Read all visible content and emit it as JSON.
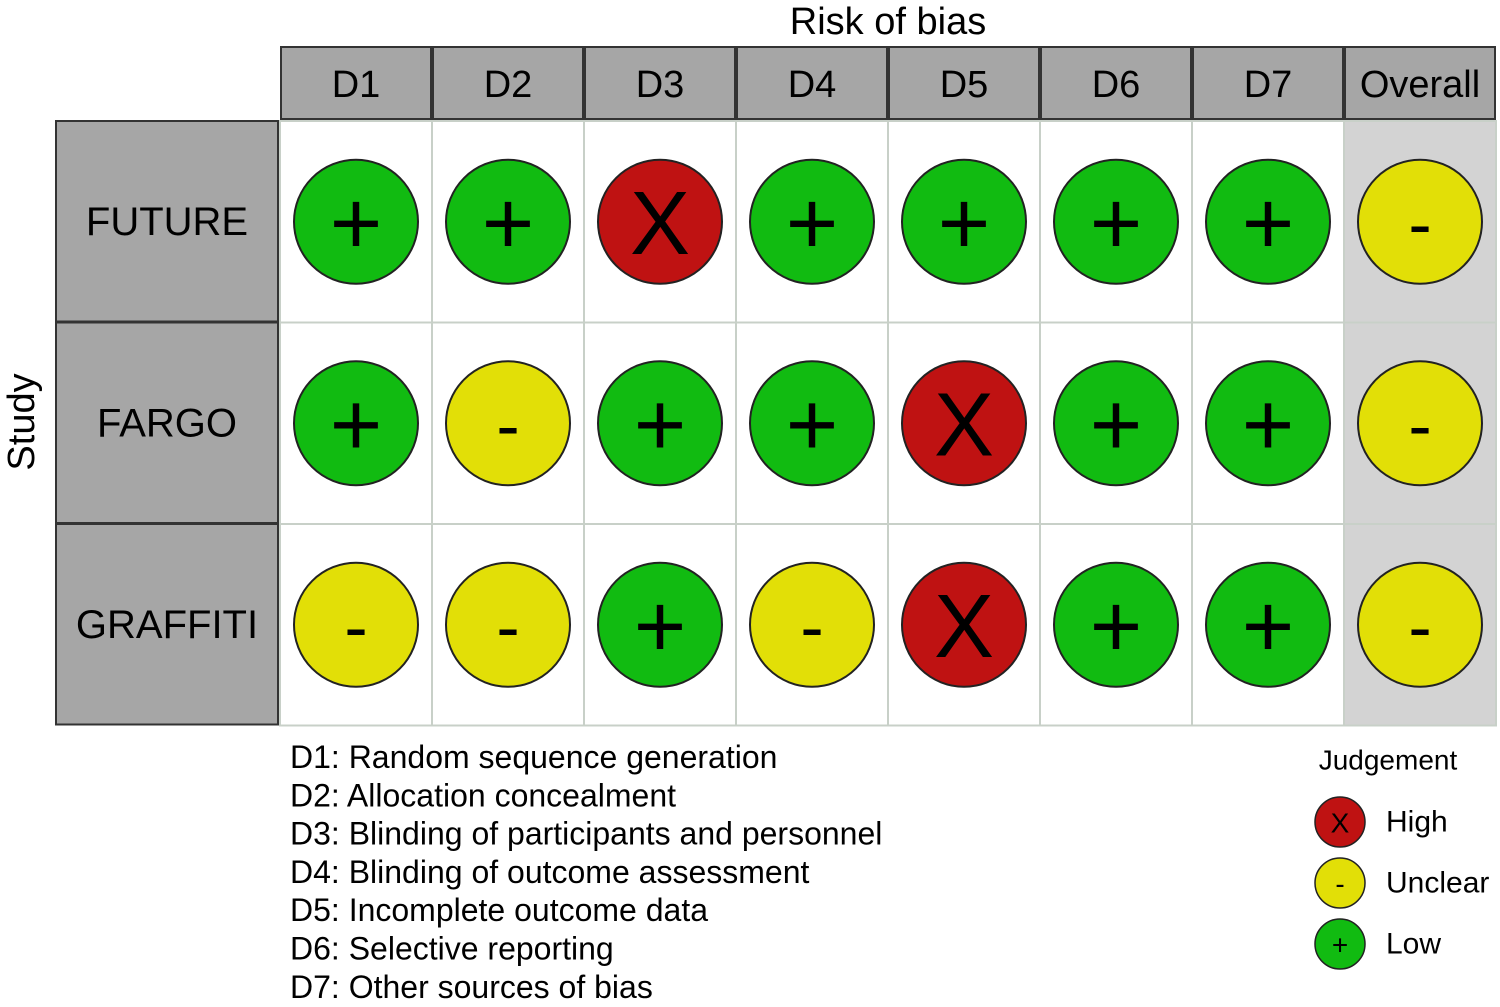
{
  "title": "Risk of bias",
  "y_label": "Study",
  "columns": [
    "D1",
    "D2",
    "D3",
    "D4",
    "D5",
    "D6",
    "D7",
    "Overall"
  ],
  "rows": [
    {
      "label": "FUTURE",
      "cells": [
        "+",
        "+",
        "X",
        "+",
        "+",
        "+",
        "+",
        "-"
      ]
    },
    {
      "label": "FARGO",
      "cells": [
        "+",
        "-",
        "+",
        "+",
        "X",
        "+",
        "+",
        "-"
      ]
    },
    {
      "label": "GRAFFITI",
      "cells": [
        "-",
        "-",
        "+",
        "-",
        "X",
        "+",
        "+",
        "-"
      ]
    }
  ],
  "footnotes": [
    "D1: Random sequence generation",
    "D2: Allocation concealment",
    "D3: Blinding of participants and personnel",
    "D4: Blinding of outcome assessment",
    "D5: Incomplete outcome data",
    "D6: Selective reporting",
    "D7: Other sources of bias"
  ],
  "legend": {
    "title": "Judgement",
    "items": [
      {
        "symbol": "X",
        "label": "High",
        "color": "#bf1212"
      },
      {
        "symbol": "-",
        "label": "Unclear",
        "color": "#e2df07"
      },
      {
        "symbol": "+",
        "label": "Low",
        "color": "#11bb11"
      }
    ]
  }
}
